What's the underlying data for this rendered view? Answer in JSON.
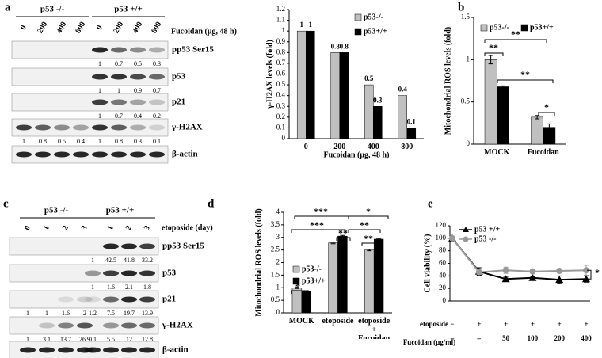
{
  "blots": [
    {
      "panel": "a",
      "groups": [
        "p53 -/-",
        "p53 +/+"
      ],
      "treatment": "Fucoidan (μg, 48 h)",
      "lanes": [
        "0",
        "200",
        "400",
        "800",
        "0",
        "200",
        "400",
        "800"
      ],
      "rows": [
        {
          "label": "pp53 Ser15",
          "quant": [
            null,
            null,
            null,
            null,
            1,
            0.7,
            0.5,
            0.3
          ]
        },
        {
          "label": "p53",
          "quant": [
            null,
            null,
            null,
            null,
            1,
            1,
            0.9,
            0.7
          ]
        },
        {
          "label": "p21",
          "quant": [
            null,
            null,
            null,
            null,
            1,
            0.7,
            0.4,
            0.2
          ]
        },
        {
          "label": "γ-H2AX",
          "quant": [
            1,
            0.8,
            0.5,
            0.4,
            1,
            0.8,
            0.3,
            0.1
          ]
        },
        {
          "label": "β-actin",
          "quant": null
        }
      ]
    },
    {
      "panel": "c",
      "groups": [
        "p53 -/-",
        "p53 +/+"
      ],
      "treatment": "etoposide (day)",
      "lanes": [
        "0",
        "1",
        "2",
        "3",
        null,
        "1",
        "2",
        "3"
      ],
      "rows": [
        {
          "label": "pp53 Ser15",
          "quant": [
            null,
            null,
            null,
            null,
            1,
            42.5,
            41.8,
            33.2
          ]
        },
        {
          "label": "p53",
          "quant": [
            null,
            null,
            null,
            null,
            1,
            1.6,
            2.1,
            1.8
          ]
        },
        {
          "label": "p21",
          "quant": [
            1,
            1,
            1.6,
            2,
            1.2,
            7.5,
            19.7,
            13.9
          ]
        },
        {
          "label": "γ-H2AX",
          "quant": [
            1,
            3.1,
            13.7,
            26.9,
            0.1,
            5.5,
            12,
            12.8
          ]
        },
        {
          "label": "β-actin",
          "quant": null
        }
      ]
    }
  ],
  "chart_data": [
    {
      "type": "bar",
      "y_label": "γ-H2AX levels (fold)",
      "x_label": "Fucoidan (μg, 48 h)",
      "categories": [
        "0",
        "200",
        "400",
        "800"
      ],
      "series": [
        {
          "name": "p53-/-",
          "color": "#c0c0c0",
          "values": [
            1,
            0.8,
            0.5,
            0.4
          ]
        },
        {
          "name": "p53+/+",
          "color": "#000000",
          "values": [
            1,
            0.8,
            0.3,
            0.1
          ]
        }
      ],
      "ylim": [
        0,
        1.2
      ],
      "yticks": [
        0,
        0.1,
        0.2,
        0.3,
        0.4,
        0.5,
        0.6,
        0.7,
        0.8,
        0.9,
        1,
        1.1,
        1.2
      ],
      "data_labels": true
    },
    {
      "type": "bar",
      "panel": "b",
      "y_label": "Mitochondrial ROS levels (fold)",
      "categories": [
        "MOCK",
        "Fucoidan"
      ],
      "series": [
        {
          "name": "p53-/-",
          "color": "#c0c0c0",
          "values": [
            1.0,
            0.32
          ],
          "errors": [
            0.05,
            0.02
          ]
        },
        {
          "name": "p53+/+",
          "color": "#000000",
          "values": [
            0.68,
            0.2
          ],
          "errors": [
            0.01,
            0.04
          ]
        }
      ],
      "ylim": [
        0,
        1.5
      ],
      "yticks": [
        0,
        0.5,
        1,
        1.5
      ],
      "annotations": [
        "**",
        "**",
        "**",
        "*"
      ]
    },
    {
      "type": "bar",
      "panel": "d",
      "y_label": "Mitochondrial ROS levels (fold)",
      "categories": [
        "MOCK",
        "etoposide",
        "etoposide + Fucoidan"
      ],
      "series": [
        {
          "name": "p53-/-",
          "color": "#c0c0c0",
          "values": [
            1.0,
            2.78,
            2.5
          ],
          "errors": [
            0.03,
            0.03,
            0.03
          ]
        },
        {
          "name": "p53+/+",
          "color": "#000000",
          "values": [
            0.85,
            3.05,
            2.93
          ],
          "errors": [
            0.03,
            0.03,
            0.03
          ]
        }
      ],
      "ylim": [
        0,
        4
      ],
      "yticks": [
        0,
        0.5,
        1,
        1.5,
        2,
        2.5,
        3,
        3.5,
        4
      ],
      "annotations": [
        "***",
        "*",
        "***",
        "**",
        "**",
        "**",
        "*"
      ]
    },
    {
      "type": "line",
      "panel": "e",
      "y_label": "Cell viability (%)",
      "series": [
        {
          "name": "p53 +/+",
          "color": "#000000",
          "marker": "triangle",
          "values": [
            100,
            47,
            35,
            37,
            34,
            35
          ],
          "errors": [
            2,
            6,
            3,
            2,
            6,
            5
          ]
        },
        {
          "name": "p53 -/-",
          "color": "#999999",
          "marker": "circle",
          "values": [
            100,
            46,
            49,
            47,
            48,
            49
          ],
          "errors": [
            2,
            3,
            5,
            2,
            3,
            8
          ]
        }
      ],
      "ylim": [
        0,
        120
      ],
      "yticks": [
        0,
        20,
        40,
        60,
        80,
        100,
        120
      ],
      "rows": [
        {
          "label": "etoposide",
          "values": [
            "−",
            "+",
            "+",
            "+",
            "+",
            "+"
          ]
        },
        {
          "label": "Fucoidan (μg/ml)",
          "values": [
            "–",
            "–",
            "50",
            "100",
            "200",
            "400"
          ]
        }
      ],
      "annotations": [
        "*"
      ]
    }
  ]
}
